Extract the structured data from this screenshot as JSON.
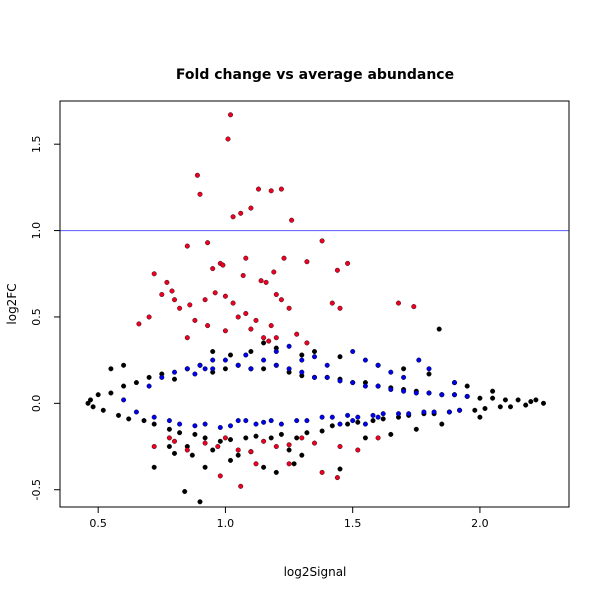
{
  "chart_data": {
    "type": "scatter",
    "title": "Fold change vs average abundance",
    "xlabel": "log2Signal",
    "ylabel": "log2FC",
    "xlim": [
      0.35,
      2.35
    ],
    "ylim": [
      -0.6,
      1.75
    ],
    "x_ticks": [
      0.5,
      1.0,
      1.5,
      2.0
    ],
    "x_tick_labels": [
      "0.5",
      "1.0",
      "1.5",
      "2.0"
    ],
    "y_ticks": [
      -0.5,
      0.0,
      0.5,
      1.0,
      1.5
    ],
    "y_tick_labels": [
      "-0.5",
      "0.0",
      "0.5",
      "1.0",
      "1.5"
    ],
    "reference_line": {
      "y": 1.0,
      "color": "#5b5bff"
    },
    "grid": false,
    "series": [
      {
        "color": "#000000",
        "values": [
          [
            0.46,
            0.0
          ],
          [
            0.47,
            0.02
          ],
          [
            0.48,
            -0.02
          ],
          [
            0.5,
            0.05
          ],
          [
            0.52,
            -0.04
          ],
          [
            0.55,
            0.06
          ],
          [
            0.58,
            -0.07
          ],
          [
            0.6,
            0.1
          ],
          [
            0.62,
            -0.09
          ],
          [
            0.65,
            0.12
          ],
          [
            0.68,
            -0.1
          ],
          [
            0.7,
            0.15
          ],
          [
            0.72,
            -0.12
          ],
          [
            0.75,
            0.17
          ],
          [
            0.78,
            -0.15
          ],
          [
            0.8,
            0.14
          ],
          [
            0.82,
            -0.17
          ],
          [
            0.85,
            0.2
          ],
          [
            0.88,
            -0.18
          ],
          [
            0.9,
            0.22
          ],
          [
            0.92,
            -0.2
          ],
          [
            0.95,
            0.18
          ],
          [
            0.98,
            -0.22
          ],
          [
            1.0,
            0.2
          ],
          [
            1.02,
            -0.21
          ],
          [
            1.05,
            0.22
          ],
          [
            1.08,
            -0.2
          ],
          [
            1.1,
            0.2
          ],
          [
            1.12,
            -0.19
          ],
          [
            1.15,
            0.2
          ],
          [
            1.18,
            -0.2
          ],
          [
            1.2,
            0.22
          ],
          [
            1.22,
            -0.18
          ],
          [
            1.25,
            0.18
          ],
          [
            1.28,
            -0.2
          ],
          [
            1.3,
            0.16
          ],
          [
            1.32,
            -0.17
          ],
          [
            1.35,
            0.15
          ],
          [
            1.38,
            -0.16
          ],
          [
            1.4,
            0.15
          ],
          [
            1.42,
            -0.13
          ],
          [
            1.45,
            0.14
          ],
          [
            1.48,
            -0.12
          ],
          [
            1.5,
            0.12
          ],
          [
            1.52,
            -0.11
          ],
          [
            1.55,
            0.12
          ],
          [
            1.58,
            -0.1
          ],
          [
            1.6,
            0.1
          ],
          [
            1.62,
            -0.09
          ],
          [
            1.65,
            0.09
          ],
          [
            1.68,
            -0.08
          ],
          [
            1.7,
            0.08
          ],
          [
            1.72,
            -0.07
          ],
          [
            1.75,
            0.07
          ],
          [
            1.78,
            -0.06
          ],
          [
            1.8,
            0.06
          ],
          [
            1.82,
            -0.06
          ],
          [
            1.85,
            0.05
          ],
          [
            1.88,
            -0.05
          ],
          [
            1.9,
            0.05
          ],
          [
            1.92,
            -0.04
          ],
          [
            1.95,
            0.04
          ],
          [
            1.98,
            -0.04
          ],
          [
            2.0,
            0.03
          ],
          [
            2.02,
            -0.03
          ],
          [
            2.05,
            0.03
          ],
          [
            2.08,
            -0.02
          ],
          [
            2.1,
            0.02
          ],
          [
            2.12,
            -0.02
          ],
          [
            2.15,
            0.02
          ],
          [
            2.18,
            -0.01
          ],
          [
            2.2,
            0.01
          ],
          [
            2.22,
            0.02
          ],
          [
            2.25,
            0.0
          ],
          [
            0.78,
            -0.25
          ],
          [
            0.8,
            -0.29
          ],
          [
            0.85,
            -0.25
          ],
          [
            0.87,
            -0.3
          ],
          [
            0.95,
            -0.27
          ],
          [
            1.05,
            -0.3
          ],
          [
            1.1,
            -0.28
          ],
          [
            1.25,
            -0.27
          ],
          [
            1.3,
            -0.3
          ],
          [
            0.72,
            -0.37
          ],
          [
            0.92,
            -0.37
          ],
          [
            1.02,
            -0.33
          ],
          [
            1.15,
            -0.37
          ],
          [
            1.2,
            -0.4
          ],
          [
            1.27,
            -0.35
          ],
          [
            1.45,
            -0.38
          ],
          [
            0.84,
            -0.51
          ],
          [
            0.9,
            -0.57
          ],
          [
            1.02,
            0.28
          ],
          [
            0.95,
            0.3
          ],
          [
            1.1,
            0.3
          ],
          [
            1.2,
            0.32
          ],
          [
            1.3,
            0.28
          ],
          [
            1.15,
            0.35
          ],
          [
            1.84,
            0.43
          ],
          [
            0.6,
            0.22
          ],
          [
            0.55,
            0.2
          ],
          [
            1.35,
            0.3
          ],
          [
            1.45,
            0.27
          ],
          [
            1.6,
            0.22
          ],
          [
            1.7,
            0.2
          ],
          [
            1.8,
            0.17
          ],
          [
            1.9,
            0.12
          ],
          [
            1.95,
            0.1
          ],
          [
            2.05,
            0.07
          ],
          [
            1.55,
            -0.2
          ],
          [
            1.65,
            -0.18
          ],
          [
            1.75,
            -0.15
          ],
          [
            1.85,
            -0.12
          ],
          [
            2.0,
            -0.08
          ]
        ]
      },
      {
        "color": "#0000ee",
        "values": [
          [
            0.6,
            0.02
          ],
          [
            0.65,
            -0.05
          ],
          [
            0.7,
            0.1
          ],
          [
            0.72,
            -0.08
          ],
          [
            0.75,
            0.15
          ],
          [
            0.78,
            -0.1
          ],
          [
            0.8,
            0.18
          ],
          [
            0.82,
            -0.12
          ],
          [
            0.85,
            0.2
          ],
          [
            0.88,
            -0.13
          ],
          [
            0.9,
            0.22
          ],
          [
            0.92,
            -0.12
          ],
          [
            0.95,
            0.2
          ],
          [
            0.98,
            -0.14
          ],
          [
            1.0,
            0.25
          ],
          [
            1.02,
            -0.13
          ],
          [
            1.05,
            0.22
          ],
          [
            1.08,
            -0.1
          ],
          [
            1.1,
            0.2
          ],
          [
            1.12,
            -0.12
          ],
          [
            1.15,
            0.25
          ],
          [
            1.18,
            -0.1
          ],
          [
            1.2,
            0.22
          ],
          [
            1.22,
            -0.12
          ],
          [
            1.25,
            0.2
          ],
          [
            1.28,
            -0.1
          ],
          [
            1.3,
            0.18
          ],
          [
            1.32,
            -0.1
          ],
          [
            1.35,
            0.15
          ],
          [
            1.38,
            -0.08
          ],
          [
            1.4,
            0.15
          ],
          [
            1.42,
            -0.08
          ],
          [
            1.45,
            0.13
          ],
          [
            1.48,
            -0.07
          ],
          [
            1.5,
            0.12
          ],
          [
            1.52,
            -0.08
          ],
          [
            1.55,
            0.1
          ],
          [
            1.58,
            -0.07
          ],
          [
            1.6,
            0.1
          ],
          [
            1.62,
            -0.06
          ],
          [
            1.65,
            0.08
          ],
          [
            1.68,
            -0.06
          ],
          [
            1.7,
            0.07
          ],
          [
            1.72,
            -0.06
          ],
          [
            1.75,
            0.06
          ],
          [
            1.78,
            -0.05
          ],
          [
            1.8,
            0.06
          ],
          [
            1.82,
            -0.05
          ],
          [
            1.85,
            0.05
          ],
          [
            1.88,
            -0.05
          ],
          [
            1.9,
            0.05
          ],
          [
            1.92,
            -0.04
          ],
          [
            1.95,
            0.04
          ],
          [
            1.3,
            0.25
          ],
          [
            1.35,
            0.27
          ],
          [
            1.4,
            0.22
          ],
          [
            1.5,
            0.3
          ],
          [
            1.55,
            0.25
          ],
          [
            1.6,
            0.22
          ],
          [
            1.65,
            0.18
          ],
          [
            1.7,
            0.15
          ],
          [
            1.76,
            0.25
          ],
          [
            1.8,
            0.2
          ],
          [
            1.9,
            0.12
          ],
          [
            1.2,
            0.3
          ],
          [
            1.25,
            0.33
          ],
          [
            1.08,
            0.28
          ],
          [
            0.95,
            0.25
          ],
          [
            1.45,
            -0.12
          ],
          [
            1.5,
            -0.1
          ],
          [
            1.55,
            -0.12
          ],
          [
            1.6,
            -0.08
          ],
          [
            1.05,
            -0.1
          ],
          [
            1.15,
            -0.11
          ],
          [
            0.88,
            0.17
          ],
          [
            0.92,
            0.2
          ]
        ]
      },
      {
        "color": "#ee0022",
        "values": [
          [
            1.02,
            1.67
          ],
          [
            1.01,
            1.53
          ],
          [
            0.89,
            1.32
          ],
          [
            0.9,
            1.21
          ],
          [
            1.13,
            1.24
          ],
          [
            1.18,
            1.23
          ],
          [
            1.22,
            1.24
          ],
          [
            1.03,
            1.08
          ],
          [
            1.06,
            1.1
          ],
          [
            1.1,
            1.13
          ],
          [
            1.26,
            1.06
          ],
          [
            1.38,
            0.94
          ],
          [
            0.93,
            0.93
          ],
          [
            0.85,
            0.91
          ],
          [
            1.08,
            0.84
          ],
          [
            1.23,
            0.84
          ],
          [
            1.19,
            0.76
          ],
          [
            1.32,
            0.82
          ],
          [
            1.48,
            0.81
          ],
          [
            1.44,
            0.77
          ],
          [
            0.98,
            0.81
          ],
          [
            0.99,
            0.8
          ],
          [
            0.95,
            0.78
          ],
          [
            1.07,
            0.74
          ],
          [
            1.14,
            0.71
          ],
          [
            1.16,
            0.7
          ],
          [
            0.72,
            0.75
          ],
          [
            0.77,
            0.7
          ],
          [
            0.79,
            0.65
          ],
          [
            0.75,
            0.63
          ],
          [
            1.2,
            0.63
          ],
          [
            1.22,
            0.6
          ],
          [
            1.25,
            0.55
          ],
          [
            1.42,
            0.58
          ],
          [
            1.45,
            0.55
          ],
          [
            1.68,
            0.58
          ],
          [
            1.74,
            0.56
          ],
          [
            0.8,
            0.6
          ],
          [
            0.82,
            0.55
          ],
          [
            0.86,
            0.57
          ],
          [
            0.92,
            0.6
          ],
          [
            0.96,
            0.64
          ],
          [
            1.0,
            0.62
          ],
          [
            1.03,
            0.58
          ],
          [
            1.05,
            0.5
          ],
          [
            1.08,
            0.52
          ],
          [
            1.12,
            0.48
          ],
          [
            1.18,
            0.45
          ],
          [
            0.66,
            0.46
          ],
          [
            0.7,
            0.5
          ],
          [
            0.88,
            0.48
          ],
          [
            0.93,
            0.45
          ],
          [
            1.0,
            0.42
          ],
          [
            1.1,
            0.43
          ],
          [
            1.15,
            0.38
          ],
          [
            1.17,
            0.36
          ],
          [
            1.2,
            0.38
          ],
          [
            1.28,
            0.4
          ],
          [
            1.32,
            0.35
          ],
          [
            0.85,
            0.38
          ],
          [
            0.78,
            -0.2
          ],
          [
            0.8,
            -0.22
          ],
          [
            0.92,
            -0.23
          ],
          [
            0.97,
            -0.25
          ],
          [
            1.0,
            -0.2
          ],
          [
            1.05,
            -0.27
          ],
          [
            1.1,
            -0.28
          ],
          [
            1.15,
            -0.22
          ],
          [
            1.2,
            -0.25
          ],
          [
            1.25,
            -0.24
          ],
          [
            1.3,
            -0.2
          ],
          [
            1.35,
            -0.23
          ],
          [
            1.45,
            -0.25
          ],
          [
            1.6,
            -0.2
          ],
          [
            1.52,
            -0.27
          ],
          [
            0.98,
            -0.42
          ],
          [
            1.06,
            -0.48
          ],
          [
            1.38,
            -0.4
          ],
          [
            1.44,
            -0.43
          ],
          [
            1.25,
            -0.35
          ],
          [
            1.12,
            -0.35
          ],
          [
            0.72,
            -0.25
          ],
          [
            0.85,
            -0.27
          ]
        ]
      }
    ]
  }
}
